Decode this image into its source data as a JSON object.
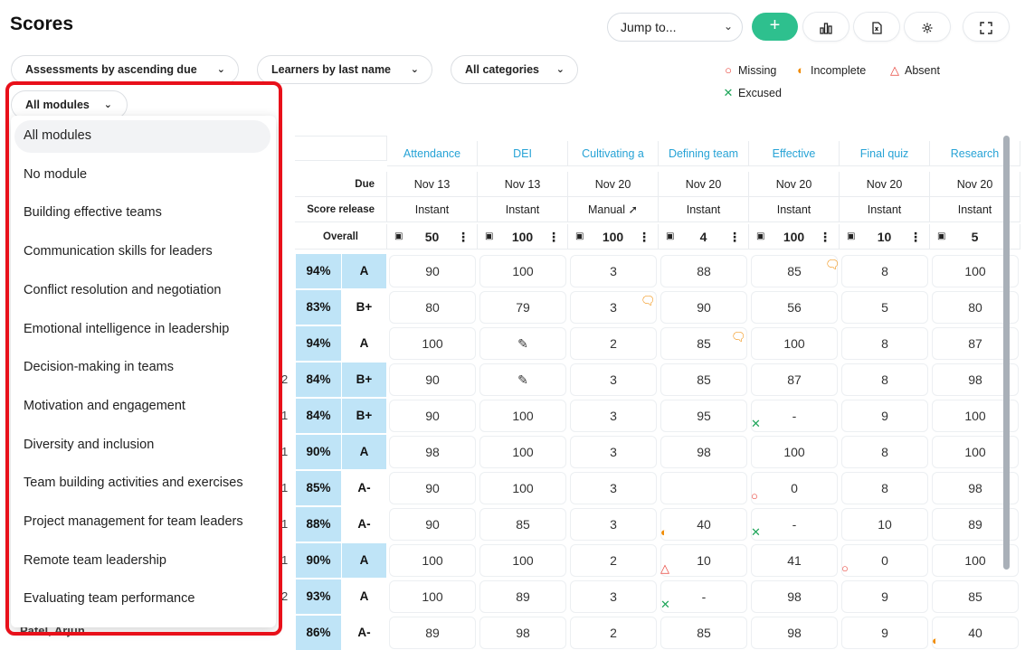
{
  "page": {
    "title": "Scores"
  },
  "toolbar": {
    "jump_label": "Jump to...",
    "add_label": "+",
    "icons": [
      "chart-icon",
      "excel-icon",
      "settings-icon",
      "fullscreen-icon"
    ]
  },
  "filters": {
    "assessments": "Assessments by ascending due",
    "learners": "Learners by last name",
    "categories": "All categories",
    "modules": "All modules"
  },
  "legend": {
    "missing": "Missing",
    "incomplete": "Incomplete",
    "absent": "Absent",
    "excused": "Excused"
  },
  "colors": {
    "accent": "#2ec08e",
    "highlight": "#bfe4f7",
    "link": "#27a3d6",
    "missing": "#e8433a",
    "incomplete": "#f08a00",
    "excused": "#1fa55a",
    "annotation": "#e8101a"
  },
  "table": {
    "row_labels": {
      "due": "Due",
      "release": "Score release",
      "overall": "Overall"
    },
    "columns": [
      {
        "name": "Attendance",
        "due": "Nov 13",
        "release": "Instant",
        "points": "50",
        "icon": "people-icon"
      },
      {
        "name": "DEI",
        "due": "Nov 13",
        "release": "Instant",
        "points": "100",
        "icon": "upload-icon"
      },
      {
        "name": "Cultivating a",
        "due": "Nov 20",
        "release": "Manual",
        "points": "100",
        "icon": "chart-pie-icon"
      },
      {
        "name": "Defining team",
        "due": "Nov 20",
        "release": "Instant",
        "points": "4",
        "icon": "quiz-icon"
      },
      {
        "name": "Effective",
        "due": "Nov 20",
        "release": "Instant",
        "points": "100",
        "icon": "wifi-off-icon"
      },
      {
        "name": "Final quiz",
        "due": "Nov 20",
        "release": "Instant",
        "points": "10",
        "icon": "quiz-icon"
      },
      {
        "name": "Research",
        "due": "Nov 20",
        "release": "Instant",
        "points": "5",
        "icon": "quiz-icon"
      }
    ],
    "rows": [
      {
        "lead": "",
        "pct": "94%",
        "grade": "A",
        "grade_hl": true,
        "cells": [
          "90",
          "100",
          "3",
          "88",
          "85",
          "8",
          "100"
        ]
      },
      {
        "lead": "",
        "pct": "83%",
        "grade": "B+",
        "grade_hl": false,
        "cells": [
          "80",
          "79",
          "3",
          "90",
          "56",
          "5",
          "80"
        ]
      },
      {
        "lead": "",
        "pct": "94%",
        "grade": "A",
        "grade_hl": false,
        "cells": [
          "100",
          "",
          "2",
          "85",
          "100",
          "8",
          "87"
        ]
      },
      {
        "lead": "2",
        "pct": "84%",
        "grade": "B+",
        "grade_hl": true,
        "cells": [
          "90",
          "",
          "3",
          "85",
          "87",
          "8",
          "98"
        ]
      },
      {
        "lead": "1",
        "pct": "84%",
        "grade": "B+",
        "grade_hl": true,
        "cells": [
          "90",
          "100",
          "3",
          "95",
          "-",
          "9",
          "100"
        ]
      },
      {
        "lead": "1",
        "pct": "90%",
        "grade": "A",
        "grade_hl": true,
        "cells": [
          "98",
          "100",
          "3",
          "98",
          "100",
          "8",
          "100"
        ]
      },
      {
        "lead": "1",
        "pct": "85%",
        "grade": "A-",
        "grade_hl": false,
        "cells": [
          "90",
          "100",
          "3",
          "",
          "0",
          "8",
          "98"
        ]
      },
      {
        "lead": "1",
        "pct": "88%",
        "grade": "A-",
        "grade_hl": false,
        "cells": [
          "90",
          "85",
          "3",
          "40",
          "-",
          "10",
          "89"
        ]
      },
      {
        "lead": "1",
        "pct": "90%",
        "grade": "A",
        "grade_hl": true,
        "cells": [
          "100",
          "100",
          "2",
          "10",
          "41",
          "0",
          "100"
        ]
      },
      {
        "lead": "2",
        "pct": "93%",
        "grade": "A",
        "grade_hl": false,
        "cells": [
          "100",
          "89",
          "3",
          "-",
          "98",
          "9",
          "85"
        ]
      },
      {
        "lead": "",
        "pct": "86%",
        "grade": "A-",
        "grade_hl": false,
        "cells": [
          "89",
          "98",
          "2",
          "85",
          "98",
          "9",
          "40"
        ]
      }
    ],
    "partial_learner": "Patel, Arjun"
  },
  "dropdown": {
    "items": [
      "All modules",
      "No module",
      "Building effective teams",
      "Communication skills for leaders",
      "Conflict resolution and negotiation",
      "Emotional intelligence in leadership",
      "Decision-making in teams",
      "Motivation and engagement",
      "Diversity and inclusion",
      "Team building activities and exercises",
      "Project management for team leaders",
      "Remote team leadership",
      "Evaluating team performance"
    ],
    "selected": "All modules"
  }
}
